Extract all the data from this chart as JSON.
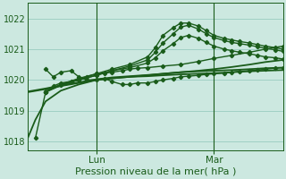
{
  "xlabel": "Pression niveau de la mer( hPa )",
  "bg_color": "#cce8e0",
  "grid_color": "#99ccc0",
  "line_color": "#1a5c1a",
  "ylim": [
    1017.7,
    1022.5
  ],
  "xlim": [
    0.0,
    1.0
  ],
  "yticks": [
    1018,
    1019,
    1020,
    1021,
    1022
  ],
  "xtick_positions": [
    0.27,
    0.73
  ],
  "xtick_labels": [
    "Lun",
    "Mar"
  ],
  "vline_positions": [
    0.27,
    0.73
  ],
  "series": [
    {
      "x": [
        0.0,
        0.03,
        0.07,
        0.13,
        0.2,
        0.27,
        0.33,
        0.4,
        0.47,
        0.53,
        0.6,
        0.67,
        0.73,
        0.8,
        0.87,
        0.93,
        1.0
      ],
      "y": [
        1018.1,
        1018.7,
        1019.3,
        1019.65,
        1019.85,
        1020.0,
        1020.05,
        1020.1,
        1020.12,
        1020.15,
        1020.18,
        1020.2,
        1020.22,
        1020.25,
        1020.28,
        1020.3,
        1020.32
      ],
      "marker": false,
      "lw": 1.3
    },
    {
      "x": [
        0.0,
        0.07,
        0.13,
        0.2,
        0.27,
        0.33,
        0.4,
        0.47,
        0.53,
        0.6,
        0.67,
        0.73,
        0.8,
        0.87,
        0.93,
        1.0
      ],
      "y": [
        1019.6,
        1019.7,
        1019.8,
        1019.9,
        1020.0,
        1020.05,
        1020.1,
        1020.15,
        1020.2,
        1020.25,
        1020.28,
        1020.3,
        1020.32,
        1020.35,
        1020.38,
        1020.4
      ],
      "marker": false,
      "lw": 1.3
    },
    {
      "x": [
        0.0,
        0.07,
        0.13,
        0.2,
        0.27,
        0.33,
        0.4,
        0.47,
        0.53,
        0.6,
        0.67,
        0.73,
        0.8,
        0.87,
        0.93,
        1.0
      ],
      "y": [
        1019.62,
        1019.72,
        1019.82,
        1019.92,
        1020.02,
        1020.08,
        1020.12,
        1020.16,
        1020.2,
        1020.25,
        1020.3,
        1020.35,
        1020.42,
        1020.5,
        1020.58,
        1020.65
      ],
      "marker": false,
      "lw": 1.3
    },
    {
      "x": [
        0.07,
        0.1,
        0.13,
        0.17,
        0.2,
        0.23,
        0.27,
        0.3,
        0.33,
        0.37,
        0.4,
        0.43,
        0.47,
        0.5,
        0.53,
        0.57,
        0.6,
        0.63,
        0.67,
        0.7,
        0.73,
        0.77,
        0.8,
        0.83,
        0.87,
        0.9,
        0.93,
        0.97,
        1.0
      ],
      "y": [
        1020.35,
        1020.1,
        1020.25,
        1020.3,
        1020.1,
        1020.0,
        1020.0,
        1020.05,
        1019.95,
        1019.85,
        1019.85,
        1019.9,
        1019.9,
        1019.95,
        1020.0,
        1020.05,
        1020.1,
        1020.12,
        1020.15,
        1020.18,
        1020.2,
        1020.22,
        1020.25,
        1020.28,
        1020.3,
        1020.32,
        1020.35,
        1020.38,
        1020.4
      ],
      "marker": true,
      "lw": 1.0
    },
    {
      "x": [
        0.03,
        0.07,
        0.1,
        0.13,
        0.17,
        0.2,
        0.23,
        0.27,
        0.3,
        0.33,
        0.37,
        0.4,
        0.43,
        0.47,
        0.53,
        0.6,
        0.67,
        0.73,
        0.8,
        0.87,
        0.93,
        1.0
      ],
      "y": [
        1018.1,
        1019.6,
        1019.8,
        1019.9,
        1019.95,
        1020.0,
        1020.1,
        1020.2,
        1020.22,
        1020.25,
        1020.3,
        1020.35,
        1020.38,
        1020.4,
        1020.45,
        1020.5,
        1020.6,
        1020.7,
        1020.8,
        1020.9,
        1021.0,
        1021.1
      ],
      "marker": true,
      "lw": 1.0
    },
    {
      "x": [
        0.07,
        0.13,
        0.2,
        0.27,
        0.33,
        0.4,
        0.47,
        0.5,
        0.53,
        0.57,
        0.6,
        0.63,
        0.67,
        0.7,
        0.73,
        0.77,
        0.8,
        0.83,
        0.87,
        0.9,
        0.93,
        0.97,
        1.0
      ],
      "y": [
        1019.6,
        1019.85,
        1020.05,
        1020.2,
        1020.35,
        1020.5,
        1020.75,
        1021.05,
        1021.45,
        1021.7,
        1021.85,
        1021.85,
        1021.75,
        1021.6,
        1021.45,
        1021.35,
        1021.3,
        1021.25,
        1021.2,
        1021.15,
        1021.1,
        1021.05,
        1021.0
      ],
      "marker": true,
      "lw": 1.0
    },
    {
      "x": [
        0.07,
        0.13,
        0.2,
        0.27,
        0.33,
        0.4,
        0.47,
        0.5,
        0.53,
        0.57,
        0.6,
        0.63,
        0.67,
        0.7,
        0.73,
        0.77,
        0.8,
        0.83,
        0.87,
        0.9,
        0.93,
        0.97,
        1.0
      ],
      "y": [
        1019.6,
        1019.82,
        1020.0,
        1020.15,
        1020.3,
        1020.45,
        1020.65,
        1020.9,
        1021.2,
        1021.5,
        1021.72,
        1021.78,
        1021.65,
        1021.5,
        1021.38,
        1021.28,
        1021.22,
        1021.18,
        1021.13,
        1021.08,
        1021.03,
        1020.98,
        1020.93
      ],
      "marker": true,
      "lw": 1.0
    },
    {
      "x": [
        0.07,
        0.13,
        0.2,
        0.27,
        0.33,
        0.4,
        0.47,
        0.5,
        0.53,
        0.57,
        0.6,
        0.63,
        0.67,
        0.7,
        0.73,
        0.77,
        0.8,
        0.83,
        0.87,
        0.9,
        0.93,
        0.97,
        1.0
      ],
      "y": [
        1019.62,
        1019.85,
        1020.0,
        1020.15,
        1020.3,
        1020.4,
        1020.55,
        1020.72,
        1020.95,
        1021.18,
        1021.38,
        1021.45,
        1021.35,
        1021.22,
        1021.1,
        1021.0,
        1020.95,
        1020.9,
        1020.85,
        1020.8,
        1020.75,
        1020.72,
        1020.68
      ],
      "marker": true,
      "lw": 1.0
    }
  ]
}
